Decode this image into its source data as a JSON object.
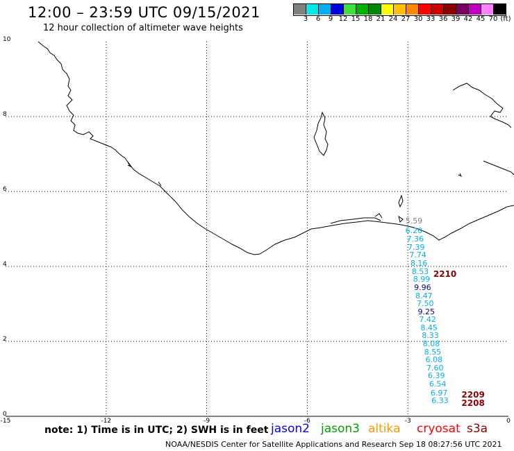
{
  "header": {
    "title": "12:00 – 23:59 UTC 09/15/2021",
    "subtitle": "12 hour collection of altimeter wave heights"
  },
  "scale": {
    "colors": [
      "#808080",
      "#00e8e8",
      "#00b0f0",
      "#0000e0",
      "#40e040",
      "#00b000",
      "#008800",
      "#ffff00",
      "#ffc000",
      "#ff8800",
      "#ff0000",
      "#c80000",
      "#880000",
      "#780060",
      "#c000c0",
      "#ff80ff",
      "#000000"
    ],
    "labels": [
      "3",
      "6",
      "9",
      "12",
      "15",
      "18",
      "21",
      "24",
      "27",
      "30",
      "33",
      "36",
      "39",
      "42",
      "45",
      "70",
      "(ft)"
    ]
  },
  "axes": {
    "x_ticks": [
      "-15",
      "-12",
      "-9",
      "-6",
      "-3",
      "0"
    ],
    "y_ticks": [
      "0",
      "2",
      "4",
      "6",
      "8",
      "10"
    ]
  },
  "observations": [
    {
      "value": "5.59",
      "x": -2.82,
      "y": 5.2,
      "color": "#808080"
    },
    {
      "value": "6.20",
      "x": -2.82,
      "y": 4.95,
      "color": "#00b0f0"
    },
    {
      "value": "7.36",
      "x": -2.78,
      "y": 4.72,
      "color": "#00b0f0"
    },
    {
      "value": "7.39",
      "x": -2.75,
      "y": 4.5,
      "color": "#00b0f0"
    },
    {
      "value": "7.74",
      "x": -2.7,
      "y": 4.29,
      "color": "#00b0f0"
    },
    {
      "value": "8.16",
      "x": -2.67,
      "y": 4.07,
      "color": "#00b0f0"
    },
    {
      "value": "8.53",
      "x": -2.63,
      "y": 3.86,
      "color": "#00b0f0"
    },
    {
      "value": "8.99",
      "x": -2.59,
      "y": 3.64,
      "color": "#00b0f0"
    },
    {
      "value": "9.96",
      "x": -2.56,
      "y": 3.43,
      "color": "#000080"
    },
    {
      "value": "8.47",
      "x": -2.52,
      "y": 3.21,
      "color": "#00b0f0"
    },
    {
      "value": "7.50",
      "x": -2.48,
      "y": 3.0,
      "color": "#00b0f0"
    },
    {
      "value": "9.25",
      "x": -2.45,
      "y": 2.78,
      "color": "#000080"
    },
    {
      "value": "7.42",
      "x": -2.41,
      "y": 2.57,
      "color": "#00b0f0"
    },
    {
      "value": "8.45",
      "x": -2.37,
      "y": 2.36,
      "color": "#00b0f0"
    },
    {
      "value": "8.33",
      "x": -2.33,
      "y": 2.14,
      "color": "#00b0f0"
    },
    {
      "value": "8.08",
      "x": -2.3,
      "y": 1.93,
      "color": "#00b0f0"
    },
    {
      "value": "8.55",
      "x": -2.26,
      "y": 1.71,
      "color": "#00b0f0"
    },
    {
      "value": "6.08",
      "x": -2.22,
      "y": 1.5,
      "color": "#00b0f0"
    },
    {
      "value": "7.60",
      "x": -2.19,
      "y": 1.28,
      "color": "#00b0f0"
    },
    {
      "value": "6.39",
      "x": -2.15,
      "y": 1.07,
      "color": "#00b0f0"
    },
    {
      "value": "6.54",
      "x": -2.11,
      "y": 0.85,
      "color": "#00b0f0"
    },
    {
      "value": "6.97",
      "x": -2.07,
      "y": 0.62,
      "color": "#00b0f0"
    },
    {
      "value": "6.33",
      "x": -2.04,
      "y": 0.4,
      "color": "#00b0f0"
    }
  ],
  "time_labels": [
    {
      "value": "2210",
      "x": -2.24,
      "y": 3.8
    },
    {
      "value": "2209",
      "x": -1.4,
      "y": 0.58
    },
    {
      "value": "2208",
      "x": -1.4,
      "y": 0.36
    }
  ],
  "note": "note: 1) Time is in UTC; 2) SWH is in feet",
  "legend": [
    {
      "label": "jason2",
      "color": "#0000ff"
    },
    {
      "label": "jason3",
      "color": "#00a000"
    },
    {
      "label": "altika",
      "color": "#ff9900"
    },
    {
      "label": "cryosat",
      "color": "#ff0000"
    },
    {
      "label": "s3a",
      "color": "#8b0000"
    }
  ],
  "footer": "NOAA/NESDIS Center for Satellite Applications and Research    Sep 18 08:27:56 UTC 2021",
  "colors": {
    "time_label": "#8b0000",
    "grid": "#000000",
    "coast": "#000000"
  }
}
